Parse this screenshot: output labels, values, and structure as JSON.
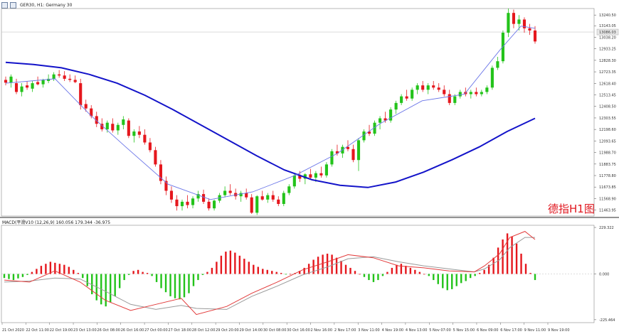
{
  "header": {
    "title": "GER30, H1: Germany 30",
    "icons": [
      "chart-type-icon",
      "timeframe-icon"
    ]
  },
  "macd_label": "MACD(平滑V10 (12,26,9) 160.056 179.344 -36.975",
  "annotation": "德指H1图",
  "colors": {
    "bull": "#23c31a",
    "bear": "#e5171d",
    "ma_slow": "#1313c9",
    "ma_fast": "#6b76e8",
    "macd_line": "#e23a3a",
    "signal_line": "#9a9a9a",
    "grid": "#c8c8c8"
  },
  "chart_data": [
    {
      "type": "candlestick",
      "title": "GER30, H1: Germany 30",
      "yticks": [
        "13240.50",
        "13143.05",
        "13038.20",
        "12933.25",
        "12828.30",
        "12723.35",
        "12618.40",
        "12513.45",
        "12408.50",
        "12303.55",
        "12198.60",
        "12093.65",
        "11988.70",
        "11883.75",
        "11778.80",
        "11673.85",
        "11568.90",
        "11463.95"
      ],
      "current_price": "13086.03",
      "ylim": [
        11410,
        13300
      ],
      "candles": [
        [
          12650,
          12680,
          12600,
          12625
        ],
        [
          12625,
          12700,
          12580,
          12680
        ],
        [
          12620,
          12660,
          12520,
          12540
        ],
        [
          12540,
          12620,
          12500,
          12590
        ],
        [
          12600,
          12640,
          12560,
          12580
        ],
        [
          12570,
          12640,
          12540,
          12620
        ],
        [
          12630,
          12680,
          12600,
          12610
        ],
        [
          12610,
          12660,
          12580,
          12650
        ],
        [
          12640,
          12700,
          12620,
          12660
        ],
        [
          12660,
          12720,
          12640,
          12700
        ],
        [
          12700,
          12740,
          12670,
          12690
        ],
        [
          12690,
          12730,
          12640,
          12660
        ],
        [
          12660,
          12700,
          12630,
          12650
        ],
        [
          12650,
          12690,
          12620,
          12630
        ],
        [
          12620,
          12660,
          12380,
          12420
        ],
        [
          12430,
          12470,
          12360,
          12390
        ],
        [
          12390,
          12420,
          12300,
          12320
        ],
        [
          12320,
          12360,
          12220,
          12250
        ],
        [
          12250,
          12300,
          12180,
          12200
        ],
        [
          12200,
          12280,
          12170,
          12260
        ],
        [
          12250,
          12300,
          12170,
          12190
        ],
        [
          12190,
          12260,
          12150,
          12240
        ],
        [
          12240,
          12320,
          12200,
          12290
        ],
        [
          12280,
          12300,
          12120,
          12140
        ],
        [
          12140,
          12200,
          12080,
          12180
        ],
        [
          12180,
          12230,
          12120,
          12150
        ],
        [
          12150,
          12200,
          12060,
          12080
        ],
        [
          12080,
          12120,
          11990,
          12010
        ],
        [
          12010,
          12040,
          11860,
          11880
        ],
        [
          11880,
          11920,
          11700,
          11730
        ],
        [
          11730,
          11770,
          11600,
          11640
        ],
        [
          11640,
          11680,
          11530,
          11560
        ],
        [
          11560,
          11600,
          11460,
          11500
        ],
        [
          11500,
          11560,
          11460,
          11540
        ],
        [
          11540,
          11600,
          11480,
          11510
        ],
        [
          11510,
          11590,
          11480,
          11570
        ],
        [
          11570,
          11640,
          11540,
          11610
        ],
        [
          11610,
          11650,
          11520,
          11540
        ],
        [
          11540,
          11570,
          11460,
          11480
        ],
        [
          11480,
          11560,
          11460,
          11550
        ],
        [
          11550,
          11620,
          11530,
          11600
        ],
        [
          11600,
          11680,
          11580,
          11640
        ],
        [
          11640,
          11700,
          11600,
          11620
        ],
        [
          11620,
          11660,
          11560,
          11590
        ],
        [
          11590,
          11640,
          11540,
          11620
        ],
        [
          11620,
          11660,
          11560,
          11580
        ],
        [
          11580,
          11610,
          11430,
          11440
        ],
        [
          11440,
          11600,
          11420,
          11590
        ],
        [
          11590,
          11640,
          11550,
          11560
        ],
        [
          11560,
          11620,
          11530,
          11600
        ],
        [
          11600,
          11640,
          11540,
          11560
        ],
        [
          11560,
          11590,
          11500,
          11520
        ],
        [
          11520,
          11640,
          11500,
          11620
        ],
        [
          11620,
          11700,
          11600,
          11680
        ],
        [
          11680,
          11800,
          11660,
          11780
        ],
        [
          11780,
          11820,
          11720,
          11750
        ],
        [
          11750,
          11800,
          11700,
          11790
        ],
        [
          11790,
          11840,
          11740,
          11760
        ],
        [
          11760,
          11820,
          11720,
          11800
        ],
        [
          11800,
          11860,
          11760,
          11780
        ],
        [
          11780,
          11900,
          11760,
          11880
        ],
        [
          11880,
          12020,
          11860,
          12000
        ],
        [
          12000,
          12060,
          11960,
          11980
        ],
        [
          11980,
          12060,
          11940,
          12040
        ],
        [
          12040,
          12100,
          12000,
          12020
        ],
        [
          12020,
          12060,
          11900,
          11920
        ],
        [
          11920,
          12120,
          11820,
          12100
        ],
        [
          12100,
          12200,
          12080,
          12180
        ],
        [
          12180,
          12240,
          12140,
          12160
        ],
        [
          12160,
          12280,
          12140,
          12260
        ],
        [
          12260,
          12320,
          12200,
          12300
        ],
        [
          12300,
          12360,
          12260,
          12280
        ],
        [
          12280,
          12400,
          12260,
          12380
        ],
        [
          12380,
          12460,
          12340,
          12440
        ],
        [
          12440,
          12520,
          12420,
          12500
        ],
        [
          12500,
          12560,
          12460,
          12480
        ],
        [
          12480,
          12580,
          12460,
          12560
        ],
        [
          12560,
          12620,
          12520,
          12600
        ],
        [
          12600,
          12640,
          12540,
          12560
        ],
        [
          12560,
          12620,
          12520,
          12600
        ],
        [
          12600,
          12640,
          12560,
          12580
        ],
        [
          12580,
          12620,
          12540,
          12560
        ],
        [
          12560,
          12600,
          12500,
          12520
        ],
        [
          12520,
          12560,
          12420,
          12440
        ],
        [
          12440,
          12520,
          12420,
          12500
        ],
        [
          12500,
          12560,
          12480,
          12540
        ],
        [
          12540,
          12580,
          12500,
          12520
        ],
        [
          12520,
          12560,
          12480,
          12540
        ],
        [
          12540,
          12580,
          12500,
          12520
        ],
        [
          12520,
          12560,
          12500,
          12540
        ],
        [
          12540,
          12600,
          12520,
          12580
        ],
        [
          12580,
          12780,
          12560,
          12760
        ],
        [
          12760,
          12860,
          12740,
          12820
        ],
        [
          12820,
          13100,
          12800,
          13080
        ],
        [
          13080,
          13300,
          13040,
          13260
        ],
        [
          13260,
          13290,
          13120,
          13160
        ],
        [
          13160,
          13240,
          13100,
          13200
        ],
        [
          13200,
          13220,
          13080,
          13120
        ],
        [
          13120,
          13160,
          13060,
          13100
        ],
        [
          13100,
          13140,
          12980,
          13000
        ]
      ],
      "ma_slow": [
        [
          0,
          12810
        ],
        [
          6,
          12790
        ],
        [
          12,
          12760
        ],
        [
          18,
          12700
        ],
        [
          24,
          12620
        ],
        [
          30,
          12510
        ],
        [
          36,
          12380
        ],
        [
          42,
          12240
        ],
        [
          48,
          12100
        ],
        [
          54,
          11960
        ],
        [
          60,
          11830
        ],
        [
          66,
          11740
        ],
        [
          72,
          11690
        ],
        [
          78,
          11670
        ],
        [
          84,
          11720
        ],
        [
          90,
          11810
        ],
        [
          96,
          11920
        ],
        [
          102,
          12040
        ],
        [
          108,
          12180
        ],
        [
          114,
          12300
        ]
      ],
      "ma_fast": [
        [
          0,
          12620
        ],
        [
          14,
          12660
        ],
        [
          24,
          12330
        ],
        [
          34,
          12040
        ],
        [
          46,
          11700
        ],
        [
          58,
          11560
        ],
        [
          70,
          11630
        ],
        [
          82,
          11780
        ],
        [
          94,
          11980
        ],
        [
          106,
          12250
        ],
        [
          118,
          12460
        ],
        [
          130,
          12520
        ],
        [
          140,
          12920
        ],
        [
          146,
          13140
        ],
        [
          150,
          13120
        ]
      ]
    },
    {
      "type": "bar",
      "title": "MACD(平滑V10 (12,26,9) 160.056 179.344 -36.975",
      "yticks": [
        "229.322",
        "0.000",
        "-225.464"
      ],
      "ylim": [
        -240,
        240
      ],
      "histogram": [
        -20,
        -25,
        -30,
        -22,
        -15,
        -5,
        10,
        25,
        40,
        50,
        60,
        55,
        50,
        45,
        35,
        20,
        5,
        -20,
        -60,
        -100,
        -130,
        -150,
        -160,
        -140,
        -110,
        -70,
        -30,
        -5,
        15,
        20,
        10,
        5,
        -10,
        -40,
        -70,
        -90,
        -110,
        -120,
        -125,
        -115,
        -95,
        -60,
        -30,
        -5,
        10,
        30,
        60,
        90,
        110,
        115,
        105,
        90,
        75,
        60,
        45,
        35,
        25,
        20,
        15,
        10,
        5,
        -2,
        0,
        5,
        15,
        30,
        50,
        70,
        85,
        95,
        100,
        95,
        80,
        65,
        45,
        30,
        15,
        0,
        -15,
        -30,
        -40,
        -30,
        -10,
        10,
        30,
        45,
        50,
        40,
        30,
        20,
        10,
        0,
        -10,
        -30,
        -50,
        -70,
        -80,
        -75,
        -60,
        -45,
        -35,
        -20,
        -10,
        5,
        20,
        45,
        80,
        130,
        170,
        200,
        185,
        150,
        100,
        50,
        5,
        -30
      ],
      "macd_line": [
        [
          0,
          -30
        ],
        [
          10,
          -40
        ],
        [
          20,
          15
        ],
        [
          30,
          -40
        ],
        [
          40,
          -130
        ],
        [
          50,
          -180
        ],
        [
          60,
          -150
        ],
        [
          70,
          -120
        ],
        [
          76,
          -200
        ],
        [
          88,
          -160
        ],
        [
          98,
          -95
        ],
        [
          108,
          -40
        ],
        [
          118,
          20
        ],
        [
          128,
          60
        ],
        [
          136,
          95
        ],
        [
          146,
          80
        ],
        [
          156,
          40
        ],
        [
          166,
          30
        ],
        [
          176,
          15
        ],
        [
          186,
          10
        ],
        [
          190,
          40
        ],
        [
          196,
          100
        ],
        [
          200,
          180
        ],
        [
          206,
          210
        ],
        [
          210,
          170
        ]
      ],
      "signal_line": [
        [
          0,
          -40
        ],
        [
          10,
          -35
        ],
        [
          20,
          -20
        ],
        [
          30,
          -25
        ],
        [
          40,
          -85
        ],
        [
          50,
          -150
        ],
        [
          60,
          -175
        ],
        [
          70,
          -155
        ],
        [
          76,
          -170
        ],
        [
          88,
          -175
        ],
        [
          98,
          -110
        ],
        [
          108,
          -60
        ],
        [
          118,
          -5
        ],
        [
          128,
          35
        ],
        [
          136,
          75
        ],
        [
          146,
          85
        ],
        [
          156,
          60
        ],
        [
          166,
          40
        ],
        [
          176,
          25
        ],
        [
          186,
          10
        ],
        [
          190,
          25
        ],
        [
          196,
          70
        ],
        [
          200,
          130
        ],
        [
          206,
          180
        ],
        [
          210,
          180
        ]
      ]
    }
  ],
  "xaxis_labels": [
    "21 Oct 2020",
    "22 Oct 11:00",
    "22 Oct 19:00",
    "23 Oct 13:00",
    "26 Oct 08:00",
    "26 Oct 16:00",
    "27 Oct 00:00",
    "27 Oct 18:00",
    "28 Oct 12:00",
    "29 Oct 20:00",
    "29 Oct 14:00",
    "30 Oct 08:00",
    "30 Oct 16:00",
    "2 Nov 16:00",
    "2 Nov 17:00",
    "3 Nov 11:00",
    "4 Nov 19:00",
    "4 Nov 13:00",
    "5 Nov 07:00",
    "5 Nov 15:00",
    "6 Nov 09:00",
    "6 Nov 17:00",
    "9 Nov 11:00",
    "9 Nov 19:00"
  ]
}
